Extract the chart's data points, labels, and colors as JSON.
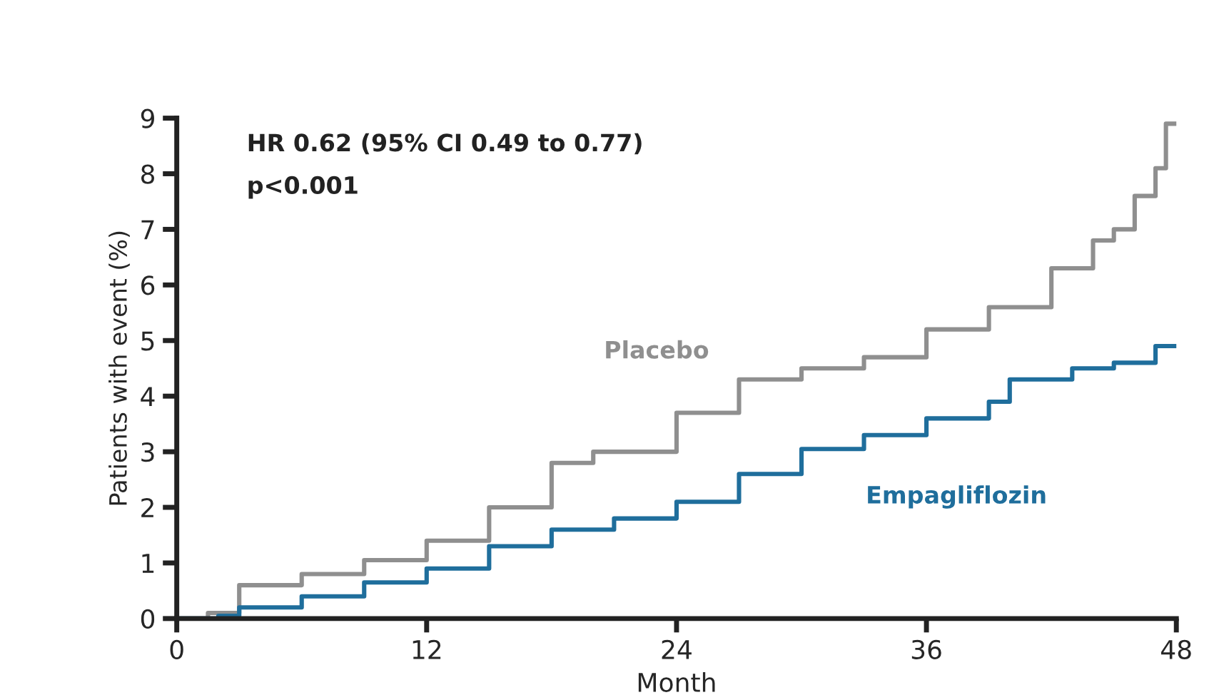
{
  "chart_data": {
    "type": "step",
    "xlabel": "Month",
    "ylabel": "Patients with event (%)",
    "annotations": [
      "HR 0.62 (95% CI 0.49 to 0.77)",
      "p<0.001"
    ],
    "xlim": [
      0,
      48
    ],
    "ylim": [
      0,
      9
    ],
    "xticks": [
      0,
      12,
      24,
      36,
      48
    ],
    "yticks": [
      0,
      1,
      2,
      3,
      4,
      5,
      6,
      7,
      8,
      9
    ],
    "grid": false,
    "legend": false,
    "series": [
      {
        "name": "Placebo",
        "color": "#8f8f8f",
        "x": [
          0,
          1.5,
          3,
          6,
          9,
          12,
          15,
          18,
          20,
          24,
          27,
          30,
          33,
          36,
          39,
          42,
          44,
          45,
          46,
          47,
          47.5,
          48
        ],
        "values": [
          0,
          0.1,
          0.6,
          0.8,
          1.05,
          1.4,
          2.0,
          2.8,
          3.0,
          3.7,
          4.3,
          4.5,
          4.7,
          5.2,
          5.6,
          6.3,
          6.8,
          7.0,
          7.6,
          8.1,
          8.9,
          8.9
        ]
      },
      {
        "name": "Empagliflozin",
        "color": "#1f6e9c",
        "x": [
          0,
          2,
          3,
          6,
          9,
          12,
          15,
          18,
          21,
          24,
          27,
          30,
          33,
          36,
          39,
          40,
          43,
          45,
          47,
          48
        ],
        "values": [
          0,
          0.05,
          0.2,
          0.4,
          0.65,
          0.9,
          1.3,
          1.6,
          1.8,
          2.1,
          2.6,
          3.05,
          3.3,
          3.6,
          3.9,
          4.3,
          4.5,
          4.6,
          4.9,
          4.9
        ]
      }
    ]
  }
}
